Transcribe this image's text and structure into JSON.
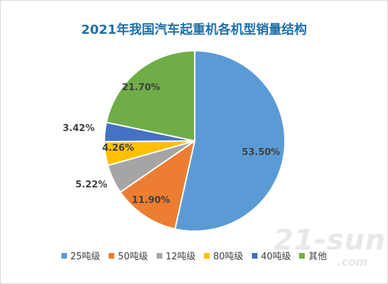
{
  "chart_data": {
    "type": "pie",
    "title": "2021年我国汽车起重机各机型销量结构",
    "slices": [
      {
        "name": "25吨级",
        "value": 53.5,
        "label": "53.50%",
        "color": "#5b9bd5"
      },
      {
        "name": "50吨级",
        "value": 11.9,
        "label": "11.90%",
        "color": "#ed7d31"
      },
      {
        "name": "12吨级",
        "value": 5.22,
        "label": "5.22%",
        "color": "#a5a5a5"
      },
      {
        "name": "80吨级",
        "value": 4.26,
        "label": "4.26%",
        "color": "#ffc000"
      },
      {
        "name": "40吨级",
        "value": 3.42,
        "label": "3.42%",
        "color": "#4472c4"
      },
      {
        "name": "其他",
        "value": 21.7,
        "label": "21.70%",
        "color": "#70ad47"
      }
    ],
    "legend_position": "bottom"
  },
  "watermark": {
    "main": "21-sun",
    "sub": ".com"
  }
}
